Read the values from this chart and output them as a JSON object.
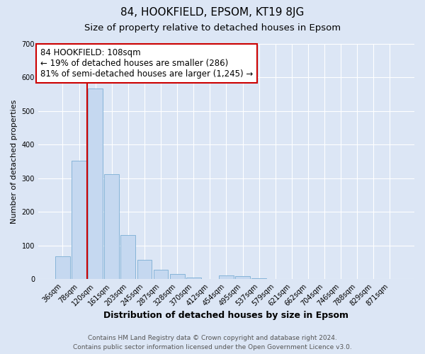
{
  "title": "84, HOOKFIELD, EPSOM, KT19 8JG",
  "subtitle": "Size of property relative to detached houses in Epsom",
  "xlabel": "Distribution of detached houses by size in Epsom",
  "ylabel": "Number of detached properties",
  "bar_labels": [
    "36sqm",
    "78sqm",
    "120sqm",
    "161sqm",
    "203sqm",
    "245sqm",
    "287sqm",
    "328sqm",
    "370sqm",
    "412sqm",
    "454sqm",
    "495sqm",
    "537sqm",
    "579sqm",
    "621sqm",
    "662sqm",
    "704sqm",
    "746sqm",
    "788sqm",
    "829sqm",
    "871sqm"
  ],
  "bar_heights": [
    68,
    352,
    567,
    312,
    130,
    57,
    28,
    15,
    5,
    0,
    10,
    8,
    2,
    0,
    0,
    0,
    0,
    0,
    0,
    0,
    0
  ],
  "bar_color": "#c5d8f0",
  "bar_edgecolor": "#7aadd4",
  "plot_bg_color": "#dce6f5",
  "fig_bg_color": "#dce6f5",
  "grid_color": "#ffffff",
  "ylim": [
    0,
    700
  ],
  "yticks": [
    0,
    100,
    200,
    300,
    400,
    500,
    600,
    700
  ],
  "redline_color": "#cc0000",
  "annotation_title": "84 HOOKFIELD: 108sqm",
  "annotation_line1": "← 19% of detached houses are smaller (286)",
  "annotation_line2": "81% of semi-detached houses are larger (1,245) →",
  "annotation_box_facecolor": "#ffffff",
  "annotation_box_edgecolor": "#cc0000",
  "footer_line1": "Contains HM Land Registry data © Crown copyright and database right 2024.",
  "footer_line2": "Contains public sector information licensed under the Open Government Licence v3.0.",
  "title_fontsize": 11,
  "subtitle_fontsize": 9.5,
  "xlabel_fontsize": 9,
  "ylabel_fontsize": 8,
  "tick_fontsize": 7,
  "annotation_fontsize": 8.5,
  "footer_fontsize": 6.5
}
